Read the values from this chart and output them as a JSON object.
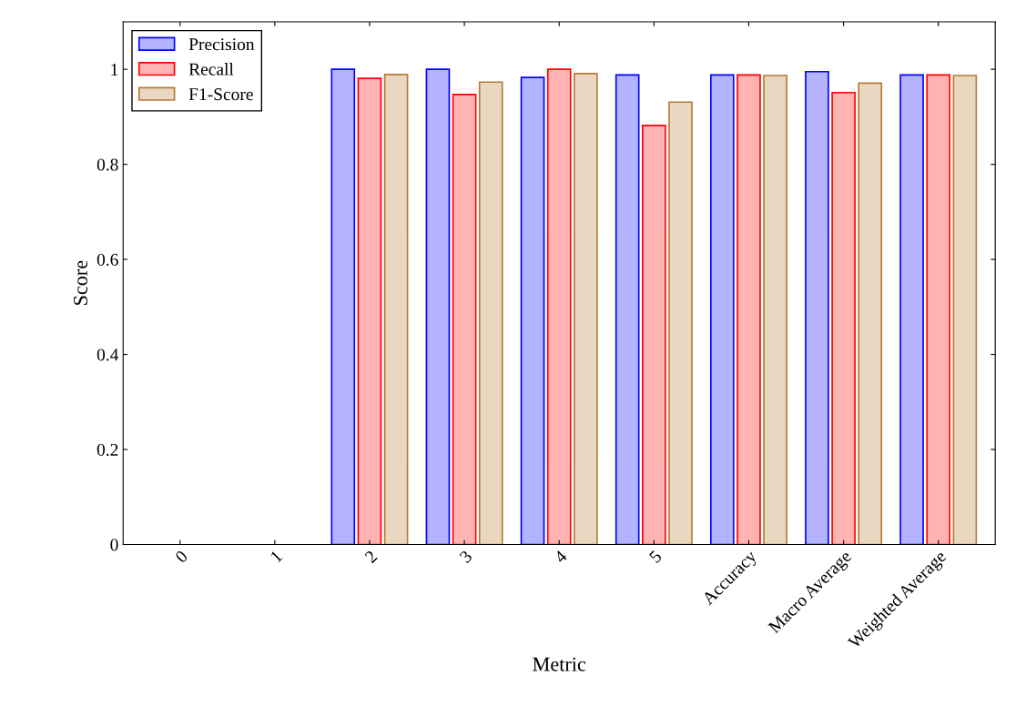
{
  "chart_data": {
    "type": "bar",
    "xlabel": "Metric",
    "ylabel": "Score",
    "categories": [
      "0",
      "1",
      "2",
      "3",
      "4",
      "5",
      "Accuracy",
      "Macro Average",
      "Weighted Average"
    ],
    "series": [
      {
        "name": "Precision",
        "color": "#b3b3ff",
        "values": [
          null,
          null,
          1.0,
          1.0,
          0.983,
          0.988,
          0.988,
          0.995,
          0.988
        ]
      },
      {
        "name": "Recall",
        "color": "#ffb3b3",
        "values": [
          null,
          null,
          0.981,
          0.947,
          1.0,
          0.882,
          0.988,
          0.951,
          0.988
        ]
      },
      {
        "name": "F1-Score",
        "color": "#e9d7c2",
        "values": [
          null,
          null,
          0.989,
          0.973,
          0.991,
          0.931,
          0.987,
          0.971,
          0.987
        ]
      }
    ],
    "ylim": [
      0,
      1.1
    ],
    "yticks": [
      0,
      0.2,
      0.4,
      0.6,
      0.8,
      1
    ],
    "grid": false,
    "legend": "top left"
  }
}
